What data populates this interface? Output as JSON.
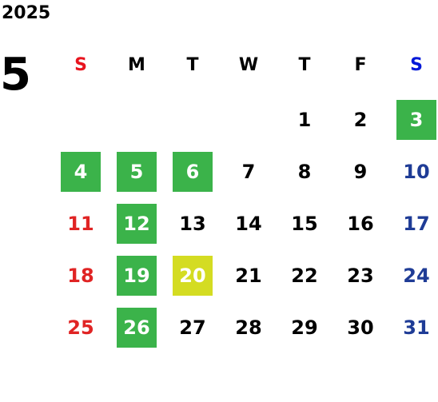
{
  "year": "2025",
  "month": "5",
  "weekdays": [
    "S",
    "M",
    "T",
    "W",
    "T",
    "F",
    "S"
  ],
  "weeks": [
    [
      null,
      null,
      null,
      null,
      {
        "day": "1"
      },
      {
        "day": "2"
      },
      {
        "day": "3",
        "highlight": "#3bb34a"
      }
    ],
    [
      {
        "day": "4",
        "highlight": "#3bb34a"
      },
      {
        "day": "5",
        "highlight": "#3bb34a"
      },
      {
        "day": "6",
        "highlight": "#3bb34a"
      },
      {
        "day": "7"
      },
      {
        "day": "8"
      },
      {
        "day": "9"
      },
      {
        "day": "10"
      }
    ],
    [
      {
        "day": "11"
      },
      {
        "day": "12",
        "highlight": "#3bb34a"
      },
      {
        "day": "13"
      },
      {
        "day": "14"
      },
      {
        "day": "15"
      },
      {
        "day": "16"
      },
      {
        "day": "17"
      }
    ],
    [
      {
        "day": "18"
      },
      {
        "day": "19",
        "highlight": "#3bb34a"
      },
      {
        "day": "20",
        "highlight": "#d4dc22"
      },
      {
        "day": "21"
      },
      {
        "day": "22"
      },
      {
        "day": "23"
      },
      {
        "day": "24"
      }
    ],
    [
      {
        "day": "25"
      },
      {
        "day": "26",
        "highlight": "#3bb34a"
      },
      {
        "day": "27"
      },
      {
        "day": "28"
      },
      {
        "day": "29"
      },
      {
        "day": "30"
      },
      {
        "day": "31"
      }
    ]
  ]
}
